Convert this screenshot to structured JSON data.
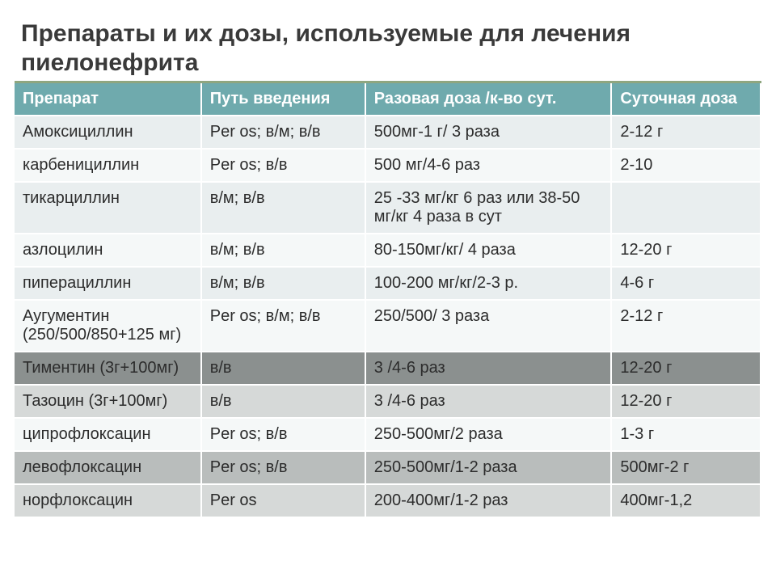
{
  "title": "Препараты и их дозы, используемые для лечения пиелонефрита",
  "columns": [
    "Препарат",
    "Путь введения",
    "Разовая доза /к-во сут.",
    "Суточная доза"
  ],
  "header_bg": "#6faaad",
  "header_text": "#ffffff",
  "row_alt_a": "#e9eeef",
  "row_alt_b": "#f5f8f8",
  "row_em_dark": "#8b908f",
  "row_em_mid": "#b9bdbc",
  "row_em_light": "#d6d9d8",
  "rows": [
    {
      "bg_key": "row_alt_a",
      "cells": [
        "Амоксициллин",
        "Per os; в/м; в/в",
        "500мг-1 г/ 3 раза",
        "2-12 г"
      ]
    },
    {
      "bg_key": "row_alt_b",
      "cells": [
        "карбенициллин",
        "Per os; в/в",
        "500 мг/4-6 раз",
        "2-10"
      ]
    },
    {
      "bg_key": "row_alt_a",
      "cells": [
        "тикарциллин",
        "в/м; в/в",
        "25 -33 мг/кг 6 раз или 38-50 мг/кг 4 раза в сут",
        ""
      ]
    },
    {
      "bg_key": "row_alt_b",
      "cells": [
        "азлоцилин",
        "в/м; в/в",
        "80-150мг/кг/ 4 раза",
        "12-20 г"
      ]
    },
    {
      "bg_key": "row_alt_a",
      "cells": [
        "пиперациллин",
        "в/м; в/в",
        "100-200 мг/кг/2-3 р.",
        "4-6 г"
      ]
    },
    {
      "bg_key": "row_alt_b",
      "cells": [
        "Аугументин (250/500/850+125 мг)",
        "Per os; в/м; в/в",
        "250/500/ 3 раза",
        "2-12 г"
      ]
    },
    {
      "bg_key": "row_em_dark",
      "cells": [
        "Тиментин (3г+100мг)",
        "в/в",
        "3 /4-6 раз",
        "12-20 г"
      ]
    },
    {
      "bg_key": "row_em_light",
      "cells": [
        "Тазоцин (3г+100мг)",
        "в/в",
        "3 /4-6 раз",
        "12-20 г"
      ]
    },
    {
      "bg_key": "row_alt_b",
      "cells": [
        "ципрофлоксацин",
        "Per os; в/в",
        "250-500мг/2 раза",
        "1-3 г"
      ]
    },
    {
      "bg_key": "row_em_mid",
      "cells": [
        "левофлоксацин",
        "Per os; в/в",
        "250-500мг/1-2 раза",
        "500мг-2 г"
      ]
    },
    {
      "bg_key": "row_em_light",
      "cells": [
        "норфлоксацин",
        "Per os",
        "200-400мг/1-2 раз",
        "400мг-1,2"
      ]
    }
  ]
}
